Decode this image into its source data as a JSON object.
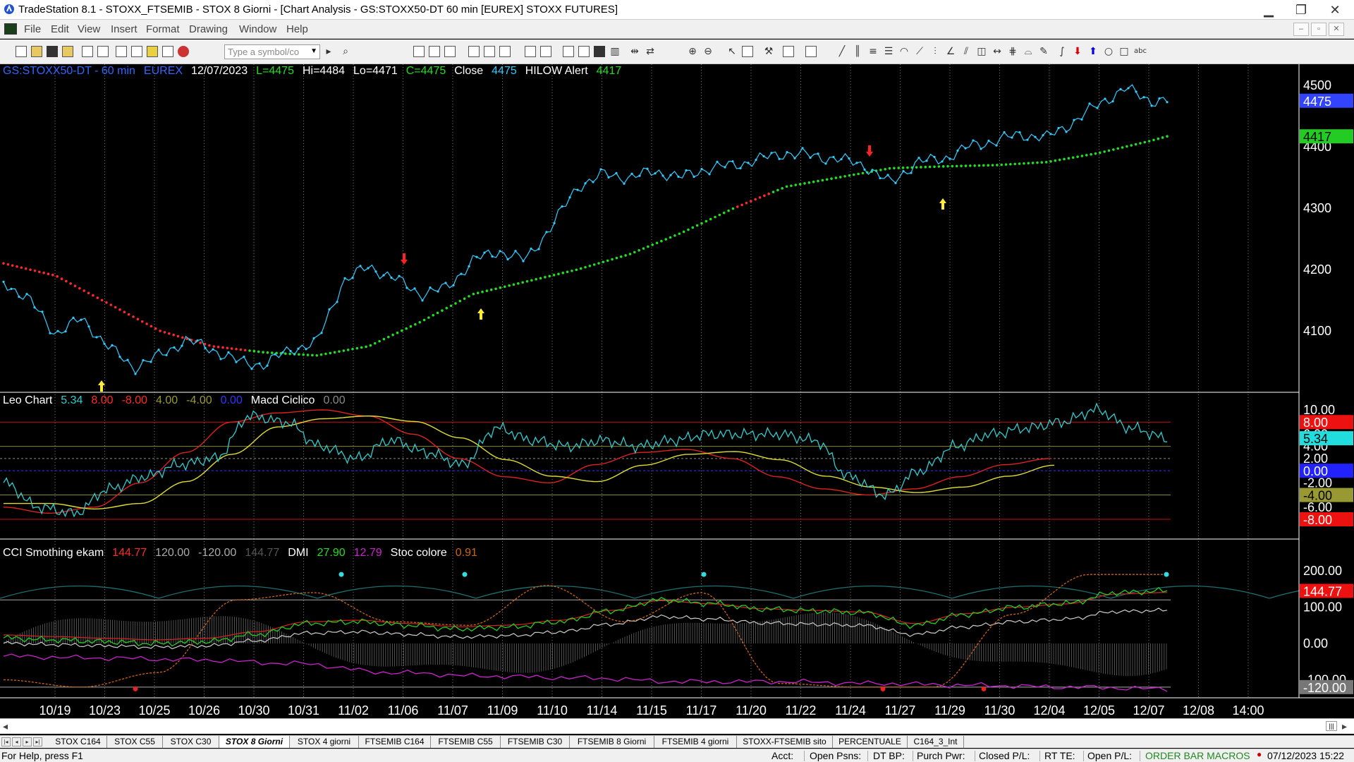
{
  "window": {
    "title": "TradeStation 8.1 - STOXX_FTSEMIB - STOX  8 Giorni - [Chart Analysis - GS:STOXX50-DT  60 min  [EUREX] STOXX FUTURES]",
    "min": "▁",
    "max": "❐",
    "close": "✕"
  },
  "menu": {
    "items": [
      "File",
      "Edit",
      "View",
      "Insert",
      "Format",
      "Drawing",
      "Window",
      "Help"
    ],
    "mdi_min": "‒",
    "mdi_restore": "▫",
    "mdi_close": "✕"
  },
  "toolbar": {
    "symbol_placeholder": "Type a symbol/co"
  },
  "chart": {
    "colors": {
      "price": "#33ccff",
      "hilow_red": "#ff2a2a",
      "hilow_green": "#22dd22",
      "leo_cyan": "#33cccc",
      "macd_red": "#dd2222",
      "macd_yellow": "#dddd33",
      "dmi_green": "#22cc22",
      "dmi_magenta": "#cc22cc",
      "stoc_orange": "#cc6611",
      "cci_white": "#cccccc",
      "grid": "#7a7a7a",
      "axis_label": "#ffffff"
    },
    "price_header": [
      {
        "text": "GS:STOXX50-DT - 60 min",
        "color": "#3366ff"
      },
      {
        "text": "EUREX",
        "color": "#3366ff"
      },
      {
        "text": "12/07/2023",
        "color": "#ffffff"
      },
      {
        "text": "L=4475",
        "color": "#22dd22"
      },
      {
        "text": "Hi=4484",
        "color": "#ffffff"
      },
      {
        "text": "Lo=4471",
        "color": "#ffffff"
      },
      {
        "text": "C=4475",
        "color": "#22dd22"
      },
      {
        "text": "Close",
        "color": "#ffffff"
      },
      {
        "text": "4475",
        "color": "#33ccff"
      },
      {
        "text": "HILOW Alert",
        "color": "#ffffff"
      },
      {
        "text": "4417",
        "color": "#22dd22"
      }
    ],
    "leo_header": [
      {
        "text": "Leo Chart",
        "color": "#ffffff"
      },
      {
        "text": "5.34",
        "color": "#33cccc"
      },
      {
        "text": "8.00",
        "color": "#ff2a2a"
      },
      {
        "text": "-8.00",
        "color": "#ff2a2a"
      },
      {
        "text": "4.00",
        "color": "#999933"
      },
      {
        "text": "-4.00",
        "color": "#999933"
      },
      {
        "text": "0.00",
        "color": "#3333ff"
      },
      {
        "text": "Macd Ciclico",
        "color": "#ffffff"
      },
      {
        "text": "0.00",
        "color": "#888888"
      }
    ],
    "cci_header": [
      {
        "text": "CCI Smothing ekam",
        "color": "#ffffff"
      },
      {
        "text": "144.77",
        "color": "#ff2a2a"
      },
      {
        "text": "120.00",
        "color": "#aaaaaa"
      },
      {
        "text": "-120.00",
        "color": "#aaaaaa"
      },
      {
        "text": "144.77",
        "color": "#555555"
      },
      {
        "text": "DMI",
        "color": "#ffffff"
      },
      {
        "text": "27.90",
        "color": "#22dd22"
      },
      {
        "text": "12.79",
        "color": "#cc22cc"
      },
      {
        "text": "Stoc colore",
        "color": "#ffffff"
      },
      {
        "text": "0.91",
        "color": "#cc6611"
      }
    ],
    "price_axis": {
      "min": 4000,
      "max": 4500,
      "ticks": [
        "4500",
        "4400",
        "4300",
        "4200",
        "4100"
      ]
    },
    "price_badges": [
      {
        "text": "4475",
        "value": 4475,
        "bg": "#3344ff",
        "fg": "#ffffff"
      },
      {
        "text": "4417",
        "value": 4417,
        "bg": "#22cc22",
        "fg": "#000000"
      }
    ],
    "leo_axis": {
      "ticks": [
        "10.00",
        "6.00",
        "4.00",
        "2.00",
        "-2.00",
        "-4.00",
        "-6.00"
      ]
    },
    "leo_badges": [
      {
        "text": "8.00",
        "value": 8,
        "bg": "#ee1111",
        "fg": "#ffffff"
      },
      {
        "text": "5.34",
        "value": 5.34,
        "bg": "#22dddd",
        "fg": "#000000"
      },
      {
        "text": "0.00",
        "value": 0,
        "bg": "#2222ff",
        "fg": "#ffffff"
      },
      {
        "text": "-4.00",
        "value": -4,
        "bg": "#999933",
        "fg": "#000000"
      },
      {
        "text": "-8.00",
        "value": -8,
        "bg": "#ee1111",
        "fg": "#ffffff"
      }
    ],
    "cci_axis": {
      "ticks": [
        "200.00",
        "100.00",
        "0.00",
        "-100.00"
      ]
    },
    "cci_badges": [
      {
        "text": "144.77",
        "value": 144.77,
        "bg": "#ee1111",
        "fg": "#ffffff"
      },
      {
        "text": "-120.00",
        "value": -120,
        "bg": "#777777",
        "fg": "#ffffff"
      }
    ],
    "dates": [
      "10/19",
      "10/23",
      "10/25",
      "10/26",
      "10/30",
      "10/31",
      "11/02",
      "11/06",
      "11/07",
      "11/09",
      "11/10",
      "11/14",
      "11/15",
      "11/17",
      "11/20",
      "11/22",
      "11/24",
      "11/27",
      "11/29",
      "11/30",
      "12/04",
      "12/05",
      "12/07",
      "12/08",
      "14:00"
    ]
  },
  "chart_data": [
    {
      "type": "line",
      "series": [
        {
          "name": "Close",
          "x": [
            0,
            0.5,
            1,
            1.5,
            2,
            2.5,
            3,
            3.5,
            4,
            4.5,
            5,
            5.5,
            6,
            6.5,
            7,
            7.5,
            8,
            8.5,
            9,
            9.5,
            10,
            10.5,
            11,
            11.5,
            12,
            12.5,
            13,
            13.5,
            14,
            14.5,
            15,
            15.5,
            16,
            16.5,
            17,
            17.5,
            18,
            18.5,
            19,
            19.5,
            20,
            20.5,
            21,
            21.5,
            22,
            22.3
          ],
          "values": [
            4180,
            4150,
            4095,
            4120,
            4075,
            4040,
            4060,
            4085,
            4070,
            4050,
            4045,
            4070,
            4080,
            4180,
            4205,
            4185,
            4160,
            4170,
            4215,
            4230,
            4215,
            4270,
            4335,
            4355,
            4350,
            4360,
            4350,
            4365,
            4370,
            4380,
            4390,
            4385,
            4380,
            4370,
            4340,
            4375,
            4380,
            4400,
            4410,
            4420,
            4415,
            4440,
            4470,
            4495,
            4475,
            4475
          ]
        },
        {
          "name": "HILOW Alert",
          "x": [
            0,
            1,
            2,
            3,
            4,
            5,
            6,
            7,
            8,
            9,
            10,
            11,
            12,
            13,
            14,
            15,
            16,
            17,
            18,
            19,
            20,
            21,
            22,
            22.3
          ],
          "values": [
            4210,
            4190,
            4145,
            4100,
            4075,
            4065,
            4060,
            4075,
            4115,
            4160,
            4180,
            4200,
            4225,
            4260,
            4300,
            4335,
            4350,
            4365,
            4368,
            4370,
            4375,
            4390,
            4410,
            4417
          ]
        }
      ],
      "ylim": [
        4000,
        4500
      ]
    },
    {
      "type": "line",
      "series": [
        {
          "name": "Leo Chart",
          "values": [
            -2,
            -6,
            -7,
            -3,
            -1,
            1,
            2,
            9,
            8,
            4,
            2,
            5,
            3,
            1,
            7,
            5,
            4,
            5,
            4,
            5,
            6,
            6,
            6,
            5,
            -1,
            -4,
            0,
            4,
            6,
            7,
            8,
            10,
            7,
            5.34
          ]
        },
        {
          "name": "Macd Ciclico",
          "values": [
            -6,
            -7,
            -6,
            -2,
            3,
            8,
            9.5,
            10,
            9,
            6,
            2,
            -1,
            -2,
            1,
            3,
            3.5,
            2,
            -1,
            -3,
            -4,
            -3,
            -1,
            1,
            2
          ]
        }
      ],
      "ylim": [
        -8,
        10
      ]
    },
    {
      "type": "line",
      "series": [
        {
          "name": "DMI",
          "values": [
            15,
            10,
            5,
            0,
            5,
            25,
            55,
            60,
            50,
            40,
            45,
            60,
            90,
            120,
            110,
            95,
            90,
            85,
            50,
            80,
            100,
            110,
            140,
            144.77
          ]
        },
        {
          "name": "DMI",
          "values": [
            -35,
            -40,
            -45,
            -55,
            -80,
            -90,
            -95,
            -105,
            -105,
            -110,
            -115,
            -120,
            -125
          ]
        },
        {
          "name": "Stoc colore",
          "values": [
            -100,
            -120,
            -80,
            120,
            140,
            60,
            50,
            160,
            60,
            140,
            -110,
            -120,
            -120,
            80,
            190,
            190
          ]
        }
      ],
      "ylim": [
        -130,
        230
      ]
    }
  ]
}
